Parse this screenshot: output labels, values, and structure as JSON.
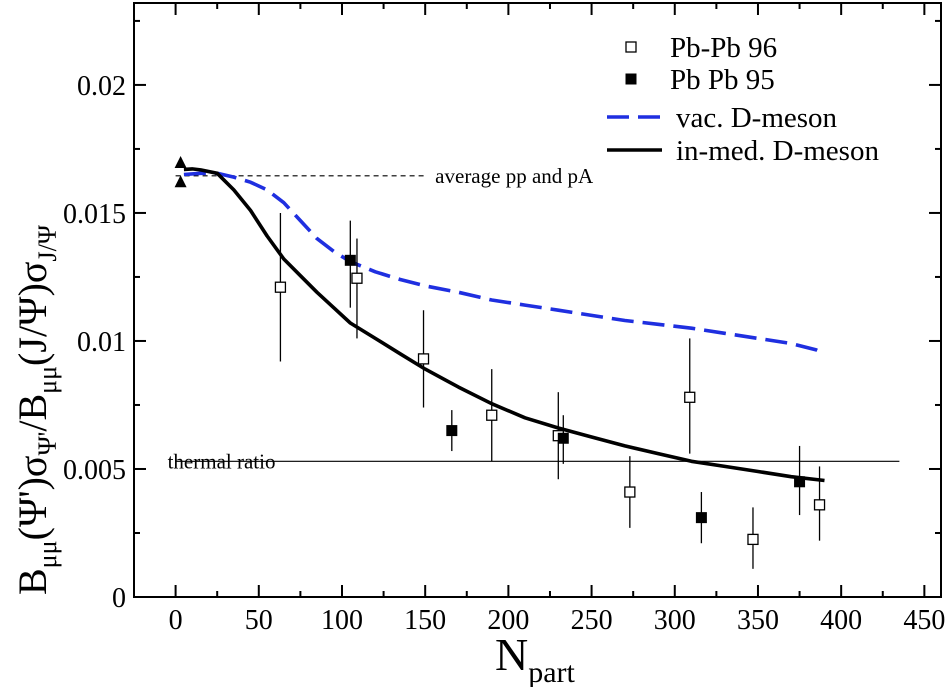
{
  "chart_data": {
    "type": "scatter",
    "title": "",
    "xlim": [
      -25,
      460
    ],
    "ylim": [
      0,
      0.0232
    ],
    "x_ticks": [
      0,
      50,
      100,
      150,
      200,
      250,
      300,
      350,
      400,
      450
    ],
    "y_ticks": [
      0,
      0.005,
      0.01,
      0.015,
      0.02
    ],
    "x_tick_labels": [
      "0",
      "50",
      "100",
      "150",
      "200",
      "250",
      "300",
      "350",
      "400",
      "450"
    ],
    "y_tick_labels": [
      "0",
      "0.005",
      "0.01",
      "0.015",
      "0.02"
    ],
    "xlabel": {
      "main": "N",
      "sub": "part"
    },
    "ylabel": {
      "parts": [
        {
          "t": "B",
          "s": "n"
        },
        {
          "t": "μμ",
          "s": "sub"
        },
        {
          "t": "(Ψ')σ",
          "s": "n"
        },
        {
          "t": "Ψ'",
          "s": "sub"
        },
        {
          "t": "/B",
          "s": "n"
        },
        {
          "t": "μμ",
          "s": "sub"
        },
        {
          "t": "(J/Ψ)σ",
          "s": "n"
        },
        {
          "t": "J/Ψ",
          "s": "sub"
        }
      ]
    },
    "grid": false,
    "legend_position": "top-right",
    "legend": [
      {
        "label": "Pb-Pb 96",
        "kind": "open-square"
      },
      {
        "label": "Pb Pb 95",
        "kind": "filled-square"
      },
      {
        "label": "vac. D-meson",
        "kind": "dashed-line",
        "color": "#1f2fe0"
      },
      {
        "label": "in-med. D-meson",
        "kind": "solid-line",
        "color": "#000000"
      }
    ],
    "reference_lines": [
      {
        "label": "average pp and pA",
        "y": 0.01645,
        "x_from": 0,
        "x_to": 150,
        "style": "dashed"
      },
      {
        "label": "thermal ratio",
        "y": 0.0053,
        "x_from": 0,
        "x_to": 435,
        "style": "solid"
      }
    ],
    "series": [
      {
        "name": "Pb-Pb 96",
        "marker": "open-square",
        "points": [
          {
            "x": 63,
            "y": 0.0121,
            "ylo": 0.0092,
            "yhi": 0.015
          },
          {
            "x": 109,
            "y": 0.01245,
            "ylo": 0.0101,
            "yhi": 0.014
          },
          {
            "x": 149,
            "y": 0.0093,
            "ylo": 0.0074,
            "yhi": 0.0112
          },
          {
            "x": 190,
            "y": 0.0071,
            "ylo": 0.0053,
            "yhi": 0.0089
          },
          {
            "x": 230,
            "y": 0.0063,
            "ylo": 0.0046,
            "yhi": 0.008
          },
          {
            "x": 273,
            "y": 0.0041,
            "ylo": 0.0027,
            "yhi": 0.0055
          },
          {
            "x": 309,
            "y": 0.0078,
            "ylo": 0.0056,
            "yhi": 0.0101
          },
          {
            "x": 347,
            "y": 0.00225,
            "ylo": 0.0011,
            "yhi": 0.0035
          },
          {
            "x": 387,
            "y": 0.0036,
            "ylo": 0.0022,
            "yhi": 0.0051
          }
        ]
      },
      {
        "name": "Pb Pb 95",
        "marker": "filled-square",
        "points": [
          {
            "x": 105,
            "y": 0.01315,
            "ylo": 0.0113,
            "yhi": 0.0147
          },
          {
            "x": 166,
            "y": 0.0065,
            "ylo": 0.0057,
            "yhi": 0.0073
          },
          {
            "x": 233,
            "y": 0.0062,
            "ylo": 0.0052,
            "yhi": 0.0071
          },
          {
            "x": 316,
            "y": 0.0031,
            "ylo": 0.0021,
            "yhi": 0.0041
          },
          {
            "x": 375,
            "y": 0.0045,
            "ylo": 0.0032,
            "yhi": 0.0059
          }
        ]
      },
      {
        "name": "pp and pA",
        "marker": "filled-triangle",
        "points": [
          {
            "x": 3,
            "y": 0.01695
          },
          {
            "x": 3,
            "y": 0.0162
          }
        ]
      },
      {
        "name": "vac. D-meson",
        "style": "dashed",
        "color": "#1f2fe0",
        "x": [
          5,
          15,
          25,
          35,
          45,
          55,
          65,
          75,
          85,
          95,
          105,
          120,
          135,
          150,
          170,
          190,
          210,
          230,
          250,
          270,
          290,
          310,
          330,
          350,
          370,
          385,
          390
        ],
        "y": [
          0.0165,
          0.01655,
          0.01655,
          0.0164,
          0.0162,
          0.0159,
          0.0154,
          0.0147,
          0.014,
          0.0135,
          0.0131,
          0.0127,
          0.0124,
          0.01215,
          0.0119,
          0.0116,
          0.0114,
          0.0112,
          0.011,
          0.0108,
          0.01065,
          0.0105,
          0.0103,
          0.0101,
          0.0099,
          0.00965,
          0.0095
        ]
      },
      {
        "name": "in-med. D-meson",
        "style": "solid",
        "color": "#000000",
        "x": [
          5,
          10,
          15,
          25,
          35,
          45,
          55,
          65,
          75,
          85,
          95,
          105,
          120,
          135,
          150,
          170,
          190,
          210,
          230,
          250,
          270,
          290,
          310,
          330,
          350,
          370,
          390
        ],
        "y": [
          0.0167,
          0.01672,
          0.01668,
          0.01655,
          0.0159,
          0.0151,
          0.0141,
          0.0132,
          0.01255,
          0.0119,
          0.0113,
          0.0107,
          0.0101,
          0.0095,
          0.0089,
          0.0082,
          0.00755,
          0.007,
          0.0066,
          0.00625,
          0.0059,
          0.0056,
          0.0053,
          0.0051,
          0.0049,
          0.0047,
          0.00455
        ]
      }
    ]
  }
}
